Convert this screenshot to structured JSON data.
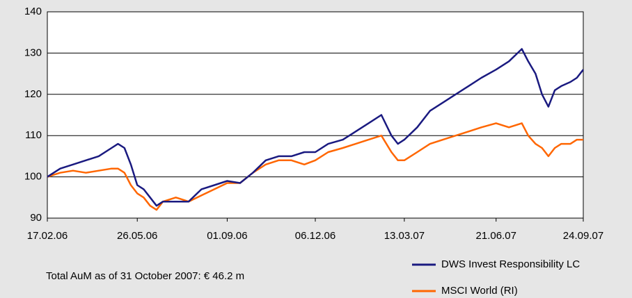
{
  "chart_data": {
    "type": "line",
    "x": [
      "17.02.06",
      "03.03.06",
      "17.03.06",
      "31.03.06",
      "14.04.06",
      "28.04.06",
      "05.05.06",
      "12.05.06",
      "19.05.06",
      "26.05.06",
      "02.06.06",
      "09.06.06",
      "16.06.06",
      "23.06.06",
      "07.07.06",
      "21.07.06",
      "04.08.06",
      "18.08.06",
      "01.09.06",
      "15.09.06",
      "29.09.06",
      "13.10.06",
      "27.10.06",
      "10.11.06",
      "24.11.06",
      "06.12.06",
      "20.12.06",
      "05.01.07",
      "19.01.07",
      "02.02.07",
      "16.02.07",
      "27.02.07",
      "06.03.07",
      "13.03.07",
      "27.03.07",
      "10.04.07",
      "24.04.07",
      "08.05.07",
      "22.05.07",
      "05.06.07",
      "21.06.07",
      "05.07.07",
      "19.07.07",
      "26.07.07",
      "03.08.07",
      "10.08.07",
      "17.08.07",
      "24.08.07",
      "31.08.07",
      "10.09.07",
      "17.09.07",
      "24.09.07"
    ],
    "series": [
      {
        "name": "DWS Invest Responsibility LC",
        "color": "#1a1a80",
        "values": [
          100,
          102,
          103,
          104,
          105,
          107,
          108,
          107,
          103,
          98,
          97,
          95,
          93,
          94,
          94,
          94,
          97,
          98,
          99,
          98.5,
          101,
          104,
          105,
          105,
          106,
          106,
          108,
          109,
          111,
          113,
          115,
          110,
          108,
          109,
          112,
          116,
          118,
          120,
          122,
          124,
          126,
          128,
          131,
          128,
          125,
          120,
          117,
          121,
          122,
          123,
          124,
          126
        ]
      },
      {
        "name": "MSCI World (RI)",
        "color": "#ff6600",
        "values": [
          100,
          101,
          101.5,
          101,
          101.5,
          102,
          102,
          101,
          98,
          96,
          95,
          93,
          92,
          94,
          95,
          94,
          95.5,
          97,
          98.5,
          98.5,
          101,
          103,
          104,
          104,
          103,
          104,
          106,
          107,
          108,
          109,
          110,
          106,
          104,
          104,
          106,
          108,
          109,
          110,
          111,
          112,
          113,
          112,
          113,
          110,
          108,
          107,
          105,
          107,
          108,
          108,
          109,
          109
        ]
      }
    ],
    "xlim": [
      "17.02.06",
      "24.09.07"
    ],
    "xticks": [
      "17.02.06",
      "26.05.06",
      "01.09.06",
      "06.12.06",
      "13.03.07",
      "21.06.07",
      "24.09.07"
    ],
    "ylim": [
      90,
      140
    ],
    "yticks": [
      90,
      100,
      110,
      120,
      130,
      140
    ],
    "grid": true,
    "annotation": "Total AuM as of 31 October 2007: € 46.2 m",
    "legend": "bottom-right"
  }
}
